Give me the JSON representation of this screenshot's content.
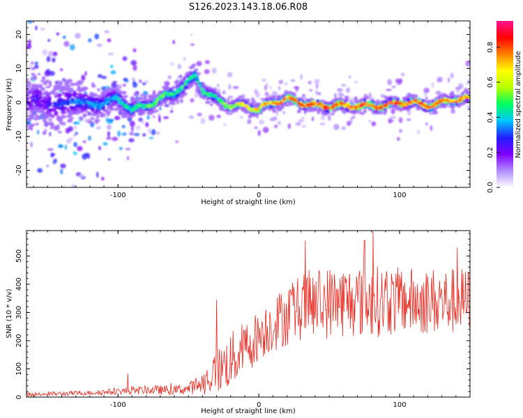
{
  "title": "S126.2023.143.18.06.R08",
  "colors": {
    "snr_line": "#e8281e",
    "colormap": [
      "#ffffff",
      "#b08cff",
      "#8000ff",
      "#2020ff",
      "#00c8ff",
      "#00ff60",
      "#b4ff00",
      "#ffff00",
      "#ff8000",
      "#ff0000",
      "#ff1493"
    ]
  },
  "chart_data": [
    {
      "type": "heatmap",
      "xlabel": "Height of straight line (km)",
      "ylabel": "Frequency (Hz)",
      "xlim": [
        -165,
        150
      ],
      "ylim": [
        -25,
        24
      ],
      "xticks": [
        -100,
        0,
        100
      ],
      "yticks": [
        -20,
        -10,
        0,
        10,
        20
      ],
      "ridge": {
        "x": [
          -165,
          -150,
          -140,
          -130,
          -120,
          -110,
          -100,
          -90,
          -80,
          -70,
          -60,
          -50,
          -45,
          -40,
          -35,
          -30,
          -25,
          -20,
          -10,
          0,
          10,
          20,
          30,
          40,
          50,
          60,
          70,
          80,
          90,
          100,
          110,
          120,
          130,
          140,
          148
        ],
        "freq": [
          1,
          0,
          -1,
          1,
          -1,
          0,
          1,
          -2,
          -1,
          1,
          3,
          6,
          8,
          4,
          2,
          1,
          0,
          -1,
          -1,
          -2,
          0,
          1,
          0,
          -1,
          -1,
          -1,
          -1,
          -1,
          -1,
          0,
          0,
          -1,
          0,
          1,
          1
        ],
        "amplitude": [
          0.25,
          0.28,
          0.3,
          0.35,
          0.38,
          0.4,
          0.42,
          0.48,
          0.5,
          0.55,
          0.5,
          0.5,
          0.45,
          0.5,
          0.48,
          0.45,
          0.55,
          0.6,
          0.7,
          0.7,
          0.75,
          0.8,
          0.8,
          0.85,
          0.85,
          0.85,
          0.85,
          0.85,
          0.85,
          0.85,
          0.85,
          0.85,
          0.8,
          0.8,
          0.8
        ],
        "width": [
          6,
          6,
          6,
          5,
          4,
          4,
          3,
          2.5,
          2,
          2,
          2.5,
          2.5,
          2.5,
          2,
          2,
          2,
          1.5,
          1.5,
          1.5,
          1.5,
          1.5,
          1.5,
          1.5,
          1.5,
          1.5,
          1.5,
          1.5,
          1.5,
          1.5,
          1.5,
          1.5,
          1.5,
          1.5,
          1.5,
          1.5
        ]
      },
      "colorbar": {
        "label": "Normalized spectral amplitude",
        "range": [
          0,
          0.95
        ],
        "ticks": [
          0.0,
          0.2,
          0.4,
          0.6,
          0.8
        ]
      }
    },
    {
      "type": "line",
      "xlabel": "Height of straight line (km)",
      "ylabel": "SNR (10 * v/v)",
      "xlim": [
        -165,
        150
      ],
      "ylim": [
        0,
        590
      ],
      "xticks": [
        -100,
        0,
        100
      ],
      "yticks": [
        0,
        100,
        200,
        300,
        400,
        500
      ],
      "trend": {
        "x": [
          -165,
          -140,
          -120,
          -100,
          -80,
          -60,
          -50,
          -40,
          -30,
          -20,
          -10,
          0,
          10,
          20,
          30,
          40,
          60,
          80,
          100,
          120,
          140,
          150
        ],
        "y": [
          10,
          12,
          15,
          20,
          25,
          25,
          30,
          50,
          90,
          130,
          170,
          220,
          260,
          290,
          320,
          330,
          340,
          340,
          340,
          340,
          340,
          340
        ],
        "spread": [
          8,
          8,
          8,
          12,
          15,
          18,
          20,
          40,
          80,
          100,
          100,
          90,
          100,
          110,
          120,
          130,
          130,
          130,
          120,
          120,
          120,
          120
        ]
      },
      "peaks": [
        {
          "x": -93,
          "y": 83
        },
        {
          "x": -30,
          "y": 345
        },
        {
          "x": 33,
          "y": 555
        },
        {
          "x": 75,
          "y": 555
        },
        {
          "x": 81,
          "y": 588
        },
        {
          "x": 141,
          "y": 530
        }
      ]
    }
  ]
}
